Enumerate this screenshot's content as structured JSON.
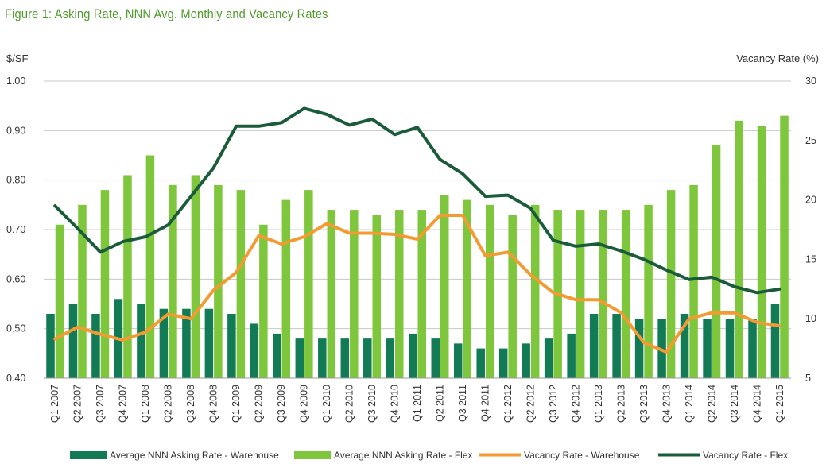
{
  "title": "Figure 1: Asking Rate, NNN Avg. Monthly and Vacancy Rates",
  "chart_data": {
    "type": "bar",
    "y_left_label": "$/SF",
    "y_right_label": "Vacancy Rate (%)",
    "y_left_range": [
      0.4,
      1.0
    ],
    "y_left_ticks": [
      "1.00",
      "0.90",
      "0.80",
      "0.70",
      "0.60",
      "0.50",
      "0.40"
    ],
    "y_right_range": [
      5,
      30
    ],
    "y_right_ticks": [
      "30",
      "25",
      "20",
      "15",
      "10",
      "5"
    ],
    "grid": true,
    "legend_position": "bottom",
    "categories": [
      "Q1 2007",
      "Q2 2007",
      "Q3 2007",
      "Q4 2007",
      "Q1 2008",
      "Q2 2008",
      "Q3 2008",
      "Q4 2008",
      "Q1 2009",
      "Q2 2009",
      "Q3 2009",
      "Q4 2009",
      "Q1 2010",
      "Q2 2010",
      "Q3 2010",
      "Q4 2010",
      "Q1 2011",
      "Q2 2011",
      "Q3 2011",
      "Q4 2011",
      "Q1 2012",
      "Q2 2012",
      "Q3 2012",
      "Q4 2012",
      "Q1 2013",
      "Q2 2013",
      "Q3 2013",
      "Q4 2013",
      "Q1 2014",
      "Q2 2014",
      "Q3 2014",
      "Q4 2014",
      "Q1 2015"
    ],
    "series": [
      {
        "name": "Average NNN Asking Rate - Warehouse",
        "type": "bar",
        "axis": "left",
        "color": "#127a55",
        "values": [
          0.53,
          0.55,
          0.53,
          0.56,
          0.55,
          0.54,
          0.54,
          0.54,
          0.53,
          0.51,
          0.49,
          0.48,
          0.48,
          0.48,
          0.48,
          0.48,
          0.49,
          0.48,
          0.47,
          0.46,
          0.46,
          0.47,
          0.48,
          0.49,
          0.53,
          0.53,
          0.52,
          0.52,
          0.53,
          0.52,
          0.52,
          0.52,
          0.55
        ]
      },
      {
        "name": "Average NNN Asking Rate - Flex",
        "type": "bar",
        "axis": "left",
        "color": "#7ec63b",
        "values": [
          0.71,
          0.75,
          0.78,
          0.81,
          0.85,
          0.79,
          0.81,
          0.79,
          0.78,
          0.71,
          0.76,
          0.78,
          0.74,
          0.74,
          0.73,
          0.74,
          0.74,
          0.77,
          0.76,
          0.75,
          0.73,
          0.75,
          0.74,
          0.74,
          0.74,
          0.74,
          0.75,
          0.78,
          0.79,
          0.87,
          0.92,
          0.91,
          0.93
        ]
      },
      {
        "name": "Vacancy Rate - Warehouse",
        "type": "line",
        "axis": "right",
        "color": "#f39b32",
        "values": [
          8.3,
          9.3,
          8.7,
          8.2,
          8.9,
          10.4,
          10.0,
          12.4,
          13.9,
          17.0,
          16.3,
          16.9,
          18.0,
          17.2,
          17.2,
          17.1,
          16.7,
          18.7,
          18.7,
          15.3,
          15.6,
          13.7,
          12.2,
          11.6,
          11.6,
          10.5,
          8.0,
          7.2,
          10.0,
          10.5,
          10.5,
          9.7,
          9.4
        ]
      },
      {
        "name": "Vacancy Rate - Flex",
        "type": "line",
        "axis": "right",
        "color": "#1a5c3a",
        "values": [
          19.5,
          17.6,
          15.6,
          16.5,
          16.9,
          17.9,
          20.3,
          22.7,
          26.2,
          26.2,
          26.5,
          27.7,
          27.2,
          26.3,
          26.8,
          25.5,
          26.1,
          23.4,
          22.2,
          20.3,
          20.4,
          19.3,
          16.6,
          16.1,
          16.3,
          15.7,
          15.0,
          14.1,
          13.3,
          13.5,
          12.7,
          12.2,
          12.5
        ]
      }
    ]
  }
}
